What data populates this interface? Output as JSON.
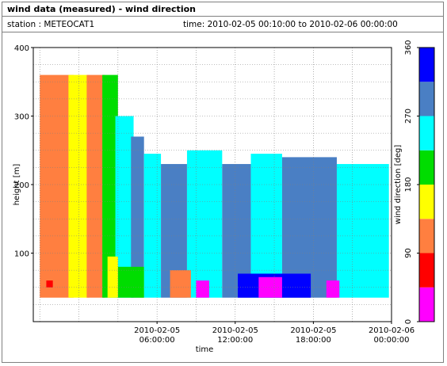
{
  "window": {
    "title": "wind data (measured) - wind direction",
    "station": "station : METEOCAT1",
    "time_range": "time: 2010-02-05 00:10:00 to 2010-02-06 00:00:00"
  },
  "chart_data": {
    "type": "heatmap",
    "xlabel": "time",
    "ylabel": "height [m]",
    "xlim_hours": [
      -3.5,
      24
    ],
    "ylim": [
      0,
      400
    ],
    "grid": true,
    "x_ticks": [
      {
        "hour": 6,
        "line1": "2010-02-05",
        "line2": "06:00:00"
      },
      {
        "hour": 12,
        "line1": "2010-02-05",
        "line2": "12:00:00"
      },
      {
        "hour": 18,
        "line1": "2010-02-05",
        "line2": "18:00:00"
      },
      {
        "hour": 24,
        "line1": "2010-02-06",
        "line2": "00:00:00"
      }
    ],
    "y_ticks": [
      100,
      200,
      300,
      400
    ],
    "colorbar": {
      "label": "wind direction [deg]",
      "range": [
        0,
        360
      ],
      "ticks": [
        0,
        90,
        180,
        270,
        360
      ],
      "bins": [
        {
          "from": 0,
          "to": 45,
          "color": "#ff00ff"
        },
        {
          "from": 45,
          "to": 90,
          "color": "#ff0000"
        },
        {
          "from": 90,
          "to": 135,
          "color": "#ff7f40"
        },
        {
          "from": 135,
          "to": 180,
          "color": "#ffff00"
        },
        {
          "from": 180,
          "to": 225,
          "color": "#00dd00"
        },
        {
          "from": 225,
          "to": 270,
          "color": "#00ffff"
        },
        {
          "from": 270,
          "to": 315,
          "color": "#4a7fc4"
        },
        {
          "from": 315,
          "to": 360,
          "color": "#0000ff"
        }
      ]
    },
    "regions": [
      {
        "t0": -3.0,
        "t1": -0.4,
        "h0": 35,
        "h1": 360,
        "dir": 112
      },
      {
        "t0": -0.8,
        "t1": 0.8,
        "h0": 35,
        "h1": 360,
        "dir": 157
      },
      {
        "t0": 0.6,
        "t1": 2.0,
        "h0": 35,
        "h1": 360,
        "dir": 112
      },
      {
        "t0": 1.8,
        "t1": 3.0,
        "h0": 35,
        "h1": 360,
        "dir": 202
      },
      {
        "t0": 2.8,
        "t1": 4.2,
        "h0": 35,
        "h1": 300,
        "dir": 247
      },
      {
        "t0": 4.0,
        "t1": 5.0,
        "h0": 35,
        "h1": 270,
        "dir": 292
      },
      {
        "t0": 5.0,
        "t1": 6.3,
        "h0": 35,
        "h1": 245,
        "dir": 247
      },
      {
        "t0": 6.3,
        "t1": 8.3,
        "h0": 35,
        "h1": 230,
        "dir": 292
      },
      {
        "t0": 8.3,
        "t1": 11.0,
        "h0": 35,
        "h1": 250,
        "dir": 247
      },
      {
        "t0": 11.0,
        "t1": 13.2,
        "h0": 35,
        "h1": 230,
        "dir": 292
      },
      {
        "t0": 13.2,
        "t1": 15.6,
        "h0": 35,
        "h1": 245,
        "dir": 247
      },
      {
        "t0": 15.6,
        "t1": 19.8,
        "h0": 35,
        "h1": 240,
        "dir": 292
      },
      {
        "t0": 19.8,
        "t1": 23.8,
        "h0": 35,
        "h1": 230,
        "dir": 247
      },
      {
        "t0": 12.2,
        "t1": 17.8,
        "h0": 35,
        "h1": 70,
        "dir": 337
      },
      {
        "t0": 13.8,
        "t1": 15.6,
        "h0": 35,
        "h1": 65,
        "dir": 22
      },
      {
        "t0": 7.0,
        "t1": 8.6,
        "h0": 35,
        "h1": 75,
        "dir": 112
      },
      {
        "t0": 3.0,
        "t1": 5.0,
        "h0": 35,
        "h1": 80,
        "dir": 202
      },
      {
        "t0": 2.2,
        "t1": 3.0,
        "h0": 35,
        "h1": 95,
        "dir": 157
      },
      {
        "t0": -2.5,
        "t1": -2.0,
        "h0": 50,
        "h1": 60,
        "dir": 67
      },
      {
        "t0": 9.0,
        "t1": 10.0,
        "h0": 35,
        "h1": 60,
        "dir": 22
      },
      {
        "t0": 19.0,
        "t1": 20.0,
        "h0": 35,
        "h1": 60,
        "dir": 22
      }
    ]
  }
}
